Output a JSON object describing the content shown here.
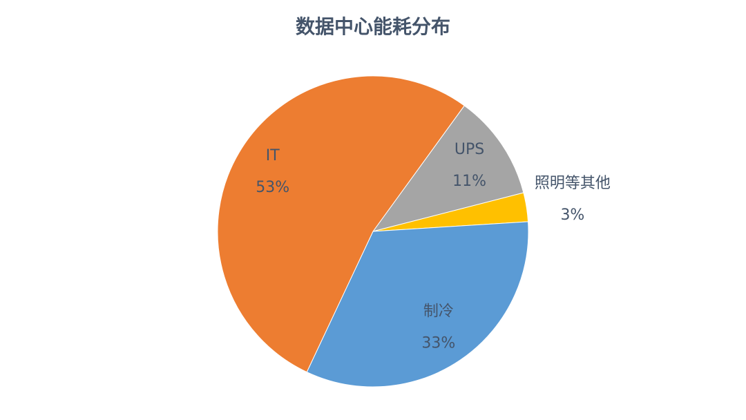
{
  "chart_data": {
    "type": "pie",
    "title": "数据中心能耗分布",
    "categories": [
      "UPS",
      "照明等其他",
      "制冷",
      "IT"
    ],
    "values": [
      11,
      3,
      33,
      53
    ],
    "value_labels": [
      "11%",
      "3%",
      "33%",
      "53%"
    ],
    "colors": [
      "#a5a5a5",
      "#ffc000",
      "#5b9bd5",
      "#ed7d31"
    ]
  }
}
